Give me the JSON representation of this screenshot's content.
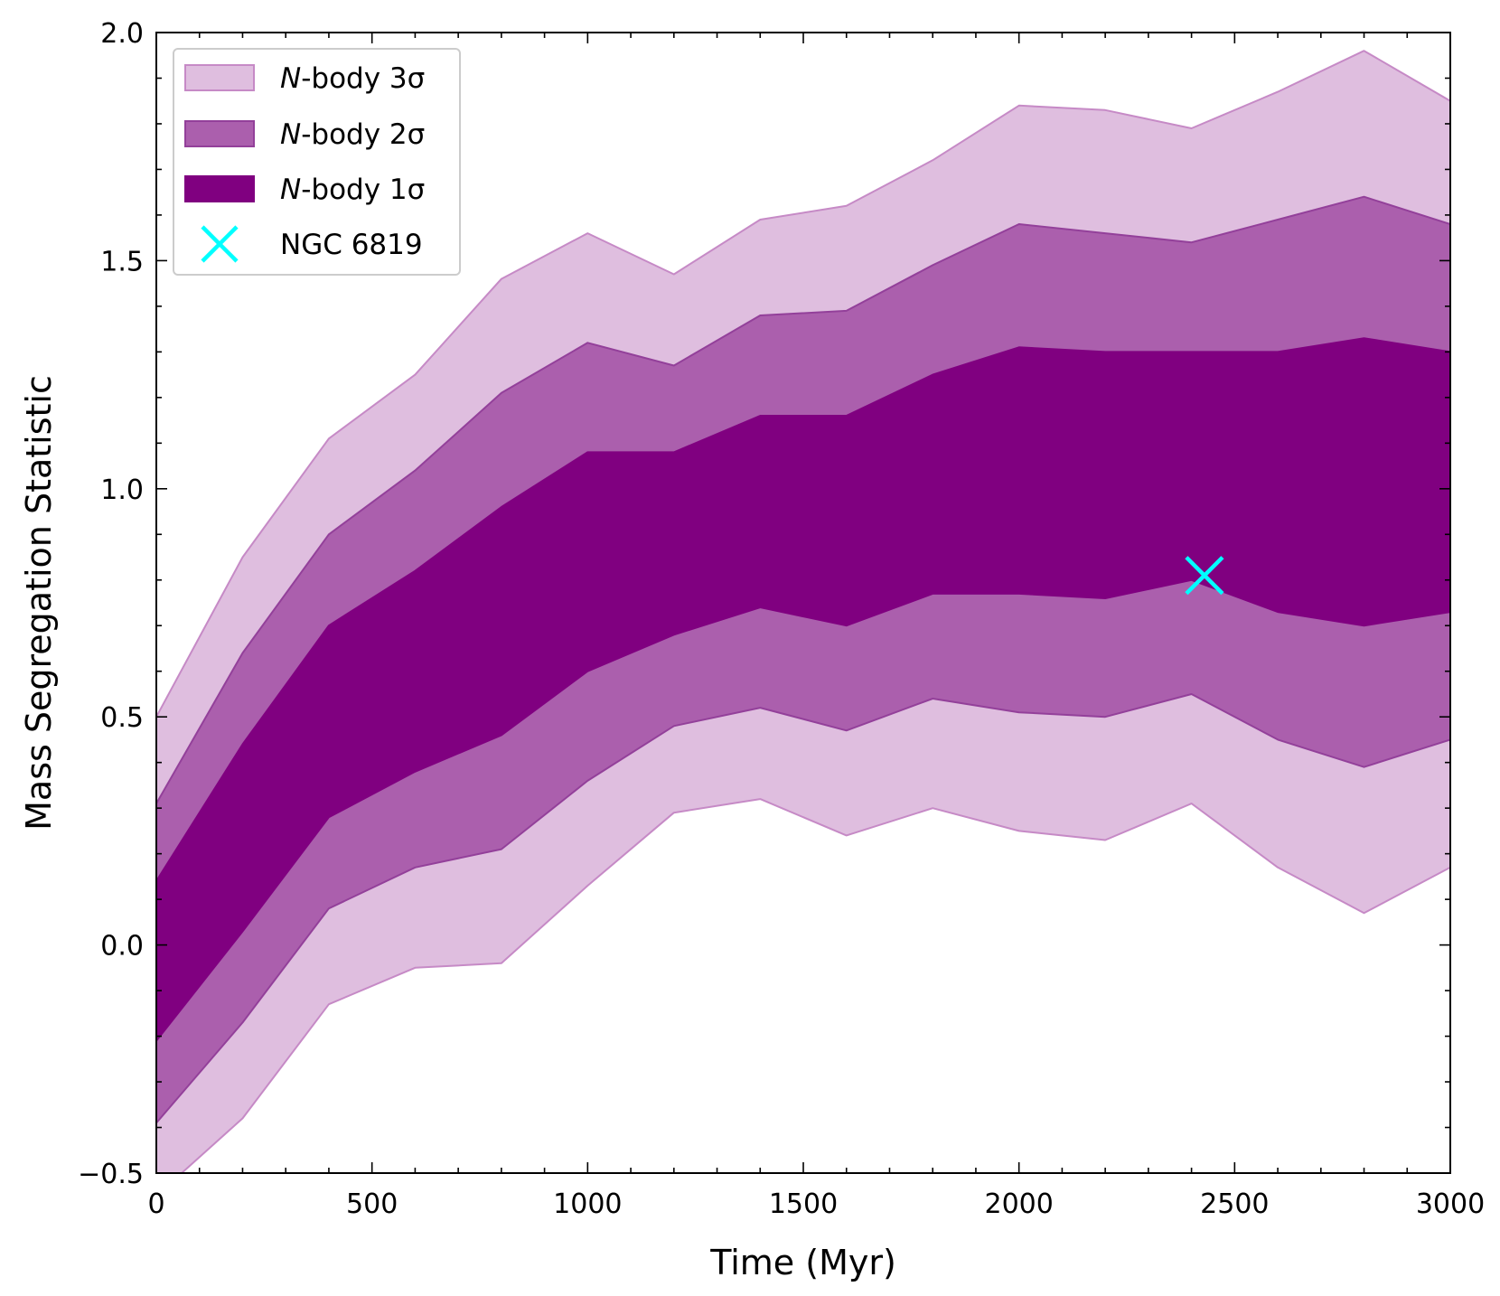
{
  "chart_data": {
    "type": "area",
    "title": "",
    "xlabel": "Time (Myr)",
    "ylabel": "Mass Segregation Statistic",
    "xlim": [
      0,
      3000
    ],
    "ylim": [
      -0.5,
      2.0
    ],
    "xticks": [
      0,
      500,
      1000,
      1500,
      2000,
      2500,
      3000
    ],
    "xtick_labels": [
      "0",
      "500",
      "1000",
      "1500",
      "2000",
      "2500",
      "3000"
    ],
    "yticks": [
      -0.5,
      0.0,
      0.5,
      1.0,
      1.5,
      2.0
    ],
    "ytick_labels": [
      "−0.5",
      "0.0",
      "0.5",
      "1.0",
      "1.5",
      "2.0"
    ],
    "grid": false,
    "legend_position": "top-left",
    "x": [
      0,
      200,
      400,
      600,
      800,
      1000,
      1200,
      1400,
      1600,
      1800,
      2000,
      2200,
      2400,
      2600,
      2800,
      3000
    ],
    "bands": [
      {
        "name": "N-body 3σ",
        "name_italic_part": "N",
        "name_rest": "-body 3σ",
        "color": "#dfbedf",
        "edge": "#c68ac6",
        "lower": [
          -0.55,
          -0.38,
          -0.13,
          -0.05,
          -0.04,
          0.13,
          0.29,
          0.32,
          0.24,
          0.3,
          0.25,
          0.23,
          0.31,
          0.17,
          0.07,
          0.17
        ],
        "upper": [
          0.5,
          0.85,
          1.11,
          1.25,
          1.46,
          1.56,
          1.47,
          1.59,
          1.62,
          1.72,
          1.84,
          1.83,
          1.79,
          1.87,
          1.96,
          1.85
        ]
      },
      {
        "name": "N-body 2σ",
        "name_italic_part": "N",
        "name_rest": "-body 2σ",
        "color": "#ab5fad",
        "edge": "#93409a",
        "lower": [
          -0.39,
          -0.17,
          0.08,
          0.17,
          0.21,
          0.36,
          0.48,
          0.52,
          0.47,
          0.54,
          0.51,
          0.5,
          0.55,
          0.45,
          0.39,
          0.45
        ],
        "upper": [
          0.31,
          0.64,
          0.9,
          1.04,
          1.21,
          1.32,
          1.27,
          1.38,
          1.39,
          1.49,
          1.58,
          1.56,
          1.54,
          1.59,
          1.64,
          1.58
        ]
      },
      {
        "name": "N-body 1σ",
        "name_italic_part": "N",
        "name_rest": "-body 1σ",
        "color": "#800080",
        "edge": "#800080",
        "lower": [
          -0.21,
          0.03,
          0.28,
          0.38,
          0.46,
          0.6,
          0.68,
          0.74,
          0.7,
          0.77,
          0.77,
          0.76,
          0.8,
          0.73,
          0.7,
          0.73
        ],
        "upper": [
          0.14,
          0.44,
          0.7,
          0.82,
          0.96,
          1.08,
          1.08,
          1.16,
          1.16,
          1.25,
          1.31,
          1.3,
          1.3,
          1.3,
          1.33,
          1.3
        ]
      }
    ],
    "points": [
      {
        "name": "NGC 6819",
        "x": 2430,
        "y": 0.81,
        "marker": "x",
        "color": "#00ffff"
      }
    ]
  }
}
